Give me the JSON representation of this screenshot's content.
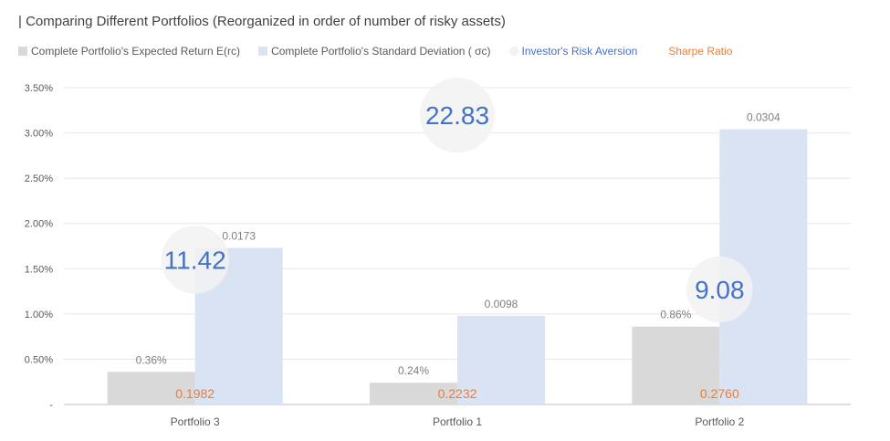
{
  "colors": {
    "expected_return": "#d9d9d9",
    "std_dev": "#dae3f3",
    "risk_aversion": "#4472c4",
    "sharpe": "#ed7d31",
    "bubble_fill": "#f2f2f2",
    "grid": "#e7e7e7",
    "axis": "#bfbfbf"
  },
  "chart_data": {
    "type": "bar",
    "title": "| Comparing Different Portfolios (Reorganized in order of number of risky assets)",
    "categories": [
      "Portfolio 3",
      "Portfolio 1",
      "Portfolio 2"
    ],
    "y_axis": {
      "ylim": [
        0,
        0.035
      ],
      "ticks": [
        0,
        0.005,
        0.01,
        0.015,
        0.02,
        0.025,
        0.03,
        0.035
      ],
      "tick_labels": [
        "-",
        "0.50%",
        "1.00%",
        "1.50%",
        "2.00%",
        "2.50%",
        "3.00%",
        "3.50%"
      ],
      "grid": true
    },
    "legend": {
      "position": "top-left",
      "entries": [
        "Complete Portfolio's Expected Return E(rc)",
        "Complete Portfolio's Standard Deviation ( σc)",
        "Investor's Risk Aversion",
        "Sharpe Ratio"
      ]
    },
    "series": [
      {
        "name": "Complete Portfolio's Expected Return E(rc)",
        "type": "bar",
        "values": [
          0.0036,
          0.0024,
          0.0086
        ],
        "labels": [
          "0.36%",
          "0.24%",
          "0.86%"
        ]
      },
      {
        "name": "Complete Portfolio's Standard Deviation ( σc)",
        "type": "bar",
        "values": [
          0.0173,
          0.0098,
          0.0304
        ],
        "labels": [
          "0.0173",
          "0.0098",
          "0.0304"
        ]
      },
      {
        "name": "Investor's Risk Aversion",
        "type": "bubble",
        "values": [
          11.42,
          22.83,
          9.08
        ],
        "labels": [
          "11.42",
          "22.83",
          "9.08"
        ]
      },
      {
        "name": "Sharpe Ratio",
        "type": "scatter",
        "values": [
          0.1982,
          0.2232,
          0.276
        ],
        "labels": [
          "0.1982",
          "0.2232",
          "0.2760"
        ]
      }
    ]
  }
}
